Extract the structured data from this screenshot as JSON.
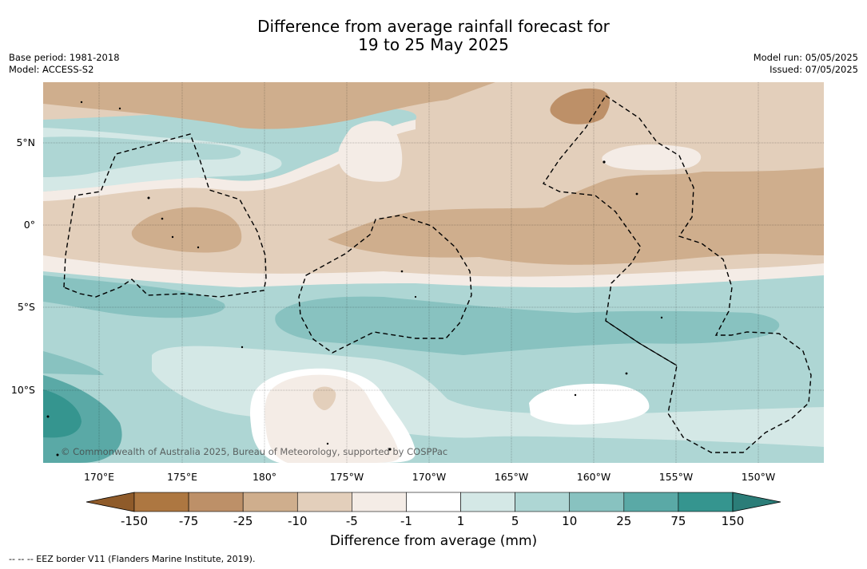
{
  "title_line1": "Difference from average rainfall forecast for",
  "title_line2": "19 to 25 May 2025",
  "base_period": "Base period: 1981-2018",
  "model": "Model: ACCESS-S2",
  "model_run": "Model run: 05/05/2025",
  "issued": "Issued: 07/05/2025",
  "copyright": "© Commonwealth of Australia 2025, Bureau of Meteorology, supported by COSPPac",
  "lon_labels": [
    "170°E",
    "175°E",
    "180°",
    "175°W",
    "170°W",
    "165°W",
    "160°W",
    "155°W",
    "150°W"
  ],
  "lat_labels": [
    "5°N",
    "0°",
    "5°S",
    "10°S"
  ],
  "colorbar": {
    "title": "Difference from average (mm)",
    "ticks": [
      "-150",
      "-75",
      "-25",
      "-10",
      "-5",
      "-1",
      "1",
      "5",
      "10",
      "25",
      "75",
      "150"
    ],
    "colors": [
      "#8f5b2a",
      "#ad7741",
      "#bd9068",
      "#cfae8d",
      "#e3cfbb",
      "#f4ece6",
      "#ffffff",
      "#d4e8e6",
      "#aed6d4",
      "#88c2c0",
      "#5aa9a6",
      "#35958f",
      "#2b7d78"
    ]
  },
  "footnote": "--  --  -- EEZ border V11 (Flanders Marine Institute, 2019)."
}
